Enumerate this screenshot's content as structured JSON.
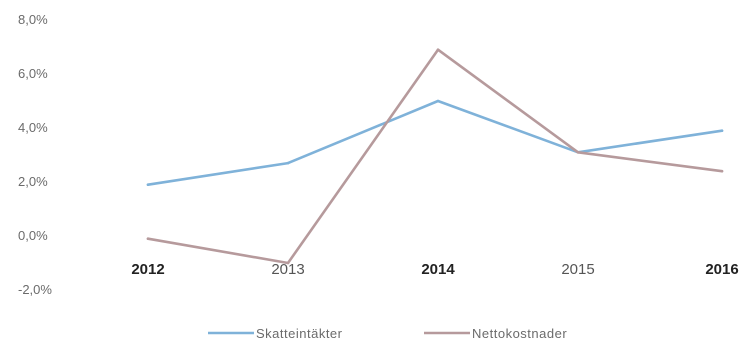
{
  "chart_data": {
    "type": "line",
    "title": "",
    "xlabel": "",
    "ylabel": "",
    "categories": [
      "2012",
      "2013",
      "2014",
      "2015",
      "2016"
    ],
    "bold_categories": [
      "2012",
      "2014",
      "2016"
    ],
    "y_tick_labels": [
      "8,0%",
      "6,0%",
      "4,0%",
      "2,0%",
      "0,0%",
      "-2,0%"
    ],
    "y_tick_values": [
      8,
      6,
      4,
      2,
      0,
      -2
    ],
    "ylim": [
      -2,
      8
    ],
    "grid": false,
    "legend_position": "bottom",
    "series": [
      {
        "name": "Skatteintäkter",
        "color": "#7fb2d9",
        "values": [
          1.9,
          2.7,
          5.0,
          3.1,
          3.9
        ]
      },
      {
        "name": "Nettokostnader",
        "color": "#b69a9c",
        "values": [
          -0.1,
          -1.0,
          6.9,
          3.1,
          2.4
        ]
      }
    ]
  }
}
